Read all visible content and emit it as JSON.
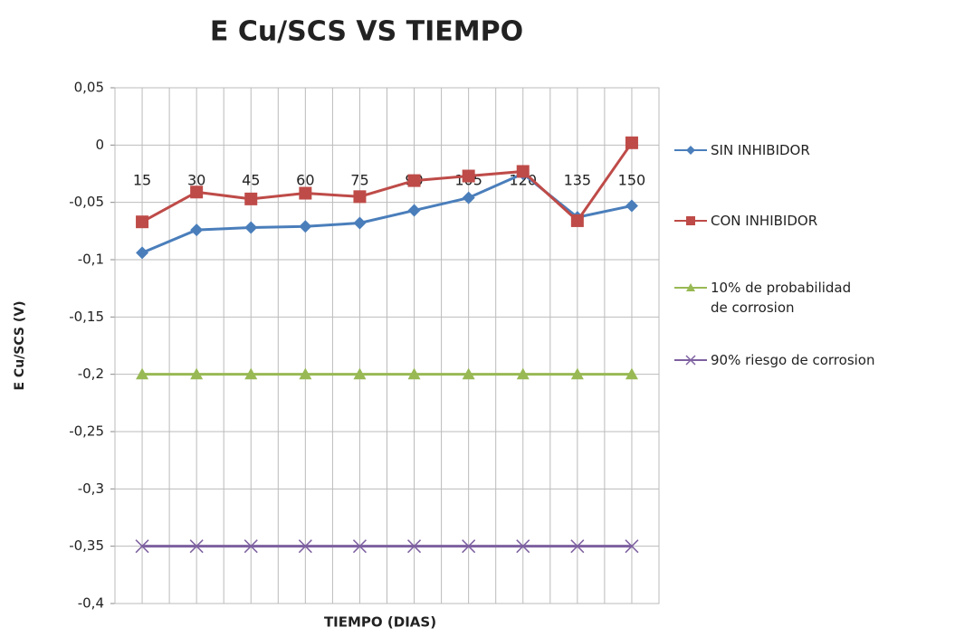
{
  "chart_data": {
    "type": "line",
    "title": "E Cu/SCS VS TIEMPO",
    "x_label": "TIEMPO (DIAS)",
    "y_label": "E Cu/SCS (V)",
    "categories": [
      "15",
      "30",
      "45",
      "60",
      "75",
      "90",
      "105",
      "120",
      "135",
      "150"
    ],
    "series": [
      {
        "name": "SIN INHIBIDOR",
        "color": "#4a7ebb",
        "marker": "diamond",
        "values": [
          -0.094,
          -0.074,
          -0.072,
          -0.071,
          -0.068,
          -0.057,
          -0.046,
          -0.025,
          -0.063,
          -0.053
        ]
      },
      {
        "name": "CON  INHIBIDOR",
        "color": "#be4b48",
        "marker": "square",
        "values": [
          -0.067,
          -0.041,
          -0.047,
          -0.042,
          -0.045,
          -0.031,
          -0.027,
          -0.023,
          -0.066,
          0.002
        ]
      },
      {
        "name": "10% de probabilidad de corrosion",
        "color": "#98b954",
        "marker": "triangle",
        "values": [
          -0.2,
          -0.2,
          -0.2,
          -0.2,
          -0.2,
          -0.2,
          -0.2,
          -0.2,
          -0.2,
          -0.2
        ]
      },
      {
        "name": "90% riesgo de corrosion",
        "color": "#7d60a0",
        "marker": "x",
        "values": [
          -0.35,
          -0.35,
          -0.35,
          -0.35,
          -0.35,
          -0.35,
          -0.35,
          -0.35,
          -0.35,
          -0.35
        ]
      }
    ],
    "ylim": [
      -0.4,
      0.05
    ],
    "yticks": [
      {
        "value": -0.4,
        "label": "-0,4"
      },
      {
        "value": -0.35,
        "label": "-0,35"
      },
      {
        "value": -0.3,
        "label": "-0,3"
      },
      {
        "value": -0.25,
        "label": "-0,25"
      },
      {
        "value": -0.2,
        "label": "-0,2"
      },
      {
        "value": -0.15,
        "label": "-0,15"
      },
      {
        "value": -0.1,
        "label": "-0,1"
      },
      {
        "value": -0.05,
        "label": "-0,05"
      },
      0,
      {
        "value": 0.05,
        "label": "0,05"
      }
    ],
    "grid": true,
    "legend": "right"
  }
}
